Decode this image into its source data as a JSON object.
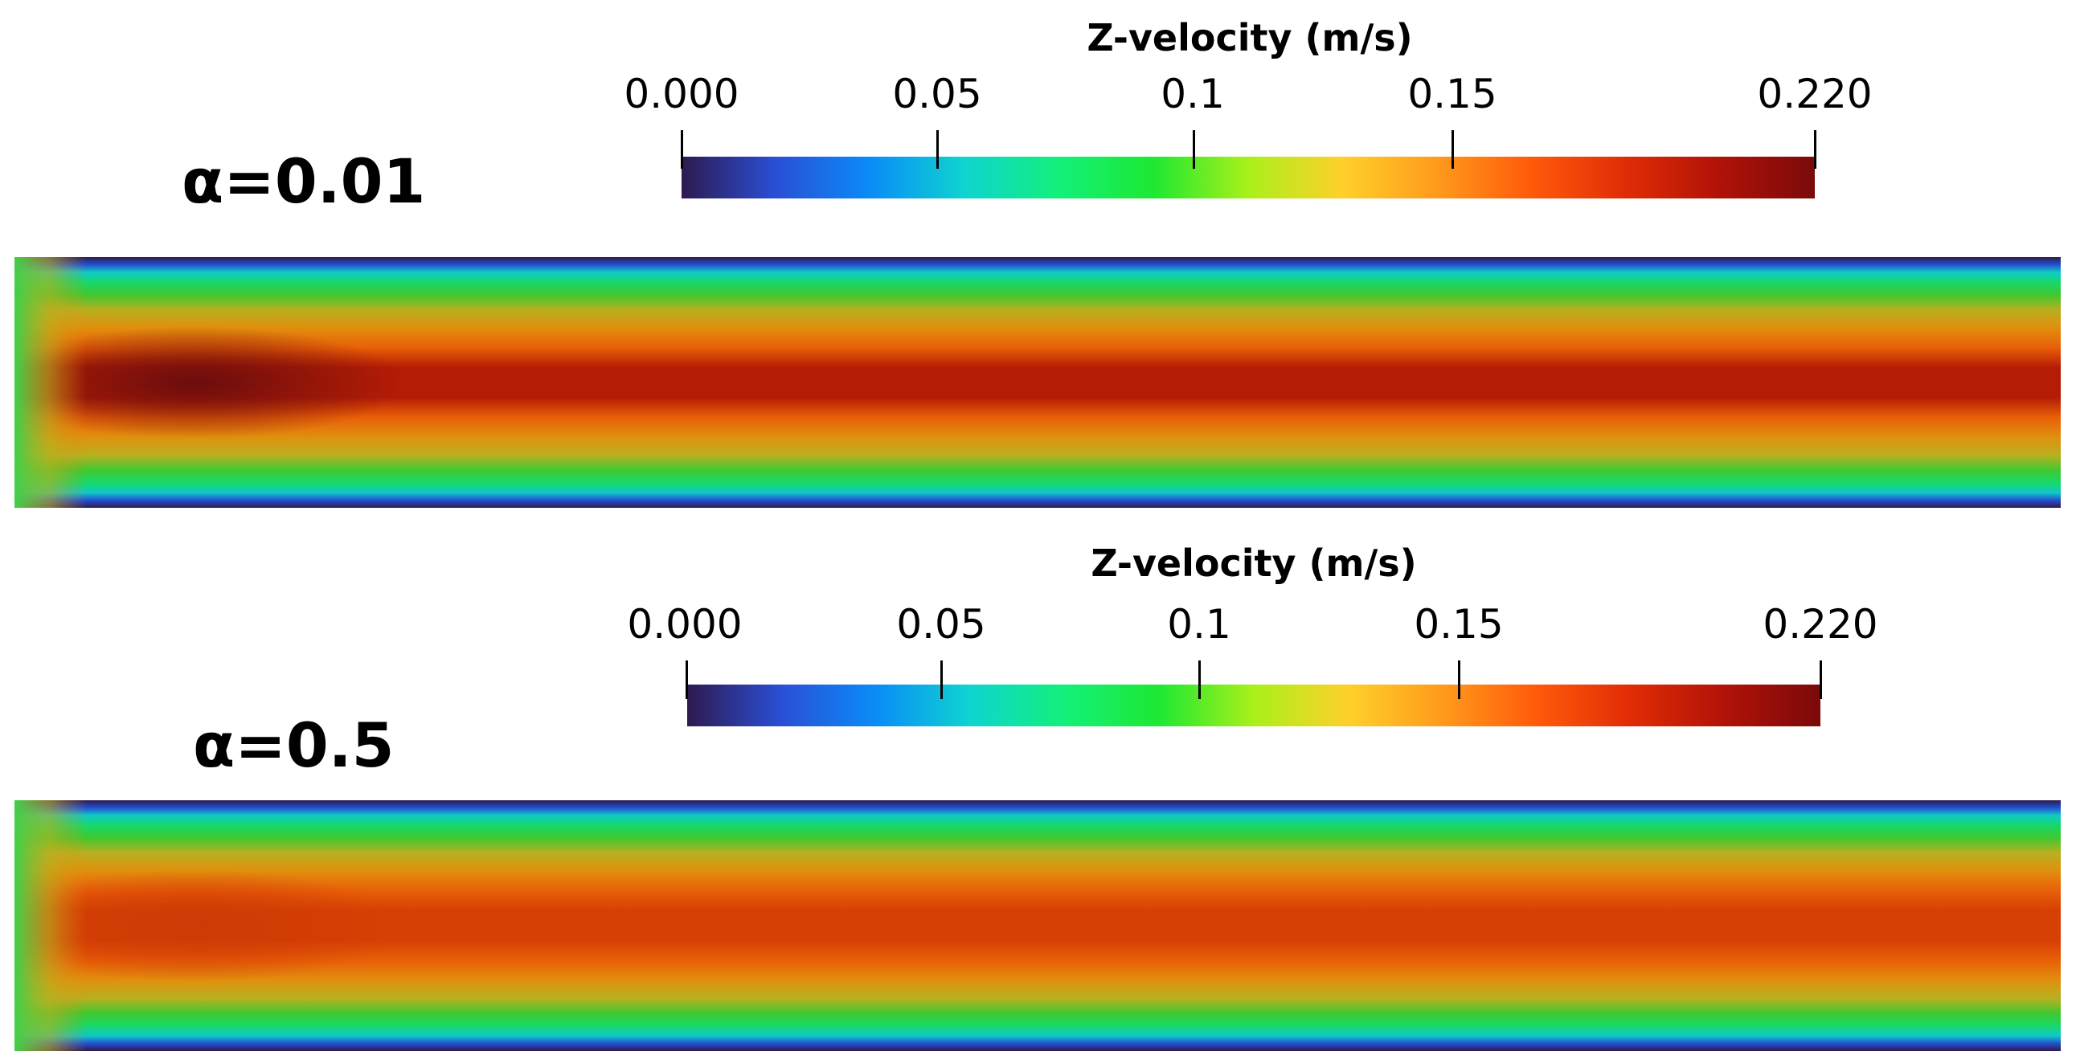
{
  "figure": {
    "panels": [
      {
        "alpha_label": "α=0.01",
        "colorbar": {
          "title": "Z-velocity (m/s)",
          "ticks": [
            "0.000",
            "0.05",
            "0.1",
            "0.15",
            "0.220"
          ],
          "range": [
            0.0,
            0.22
          ]
        },
        "field": {
          "quantity": "Z-velocity",
          "peak_color": "#6a0d0d",
          "core_color": "#b51c05"
        }
      },
      {
        "alpha_label": "α=0.5",
        "colorbar": {
          "title": "Z-velocity (m/s)",
          "ticks": [
            "0.000",
            "0.05",
            "0.1",
            "0.15",
            "0.220"
          ],
          "range": [
            0.0,
            0.22
          ]
        },
        "field": {
          "quantity": "Z-velocity",
          "peak_color": "#cf3a06",
          "core_color": "#d64004"
        }
      }
    ],
    "colormap": [
      "#2e1a4f",
      "#2a4fd6",
      "#0a8cf7",
      "#0fd4d0",
      "#12f07a",
      "#1ee832",
      "#aaf01a",
      "#ffd02a",
      "#ff9a1c",
      "#ff5a0a",
      "#e02c06",
      "#b01208",
      "#7a0a0a"
    ]
  }
}
